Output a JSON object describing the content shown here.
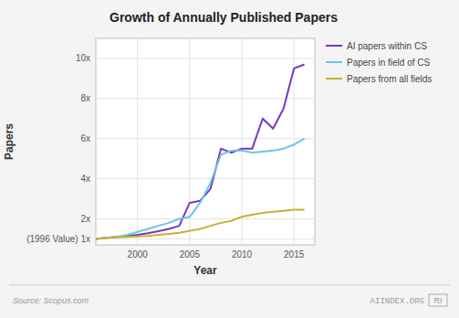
{
  "chart_data": {
    "type": "line",
    "title": "Growth of Annually Published Papers",
    "xlabel": "Year",
    "ylabel": "Papers",
    "x": [
      1996,
      1997,
      1998,
      1999,
      2000,
      2001,
      2002,
      2003,
      2004,
      2005,
      2006,
      2007,
      2008,
      2009,
      2010,
      2011,
      2012,
      2013,
      2014,
      2015,
      2016
    ],
    "series": [
      {
        "name": "AI papers within CS",
        "color": "#7b35c0",
        "values": [
          1.0,
          1.05,
          1.1,
          1.15,
          1.2,
          1.28,
          1.38,
          1.5,
          1.65,
          2.8,
          2.9,
          3.5,
          5.5,
          5.3,
          5.5,
          5.5,
          7.0,
          6.5,
          7.5,
          9.5,
          9.7
        ]
      },
      {
        "name": "Papers in field of CS",
        "color": "#6cc5e8",
        "values": [
          1.0,
          1.05,
          1.1,
          1.2,
          1.35,
          1.5,
          1.65,
          1.8,
          2.0,
          2.1,
          2.8,
          3.8,
          5.2,
          5.4,
          5.4,
          5.3,
          5.35,
          5.4,
          5.5,
          5.7,
          6.0
        ]
      },
      {
        "name": "Papers from all fields",
        "color": "#c8b030",
        "values": [
          1.0,
          1.05,
          1.08,
          1.1,
          1.12,
          1.15,
          1.2,
          1.25,
          1.3,
          1.4,
          1.5,
          1.65,
          1.8,
          1.9,
          2.1,
          2.2,
          2.3,
          2.35,
          2.4,
          2.45,
          2.45
        ]
      }
    ],
    "xlim": [
      1996,
      2017
    ],
    "xticks": [
      2000,
      2005,
      2010,
      2015
    ],
    "ylim": [
      0.7,
      11.0
    ],
    "yticks": [
      {
        "value": 1,
        "label": "(1996 Value) 1x"
      },
      {
        "value": 2,
        "label": "2x"
      },
      {
        "value": 4,
        "label": "4x"
      },
      {
        "value": 6,
        "label": "6x"
      },
      {
        "value": 8,
        "label": "8x"
      },
      {
        "value": 10,
        "label": "10x"
      }
    ],
    "grid": true,
    "legend": "right",
    "annotations": [
      "Source: Scopus.com",
      "AIINDEX.ORG",
      "RI"
    ]
  }
}
